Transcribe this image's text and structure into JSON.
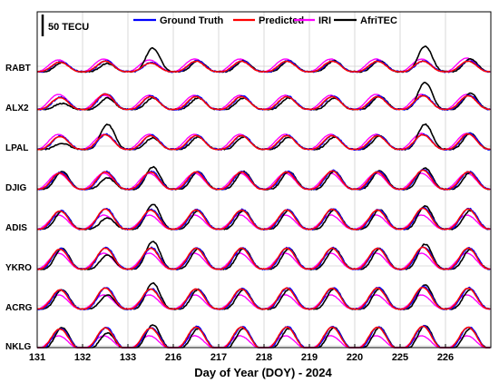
{
  "chart_data": {
    "type": "line",
    "title": "",
    "xlabel": "Day of Year (DOY) - 2024",
    "ylabel": "",
    "scale_label": "50 TECU",
    "x_ticks": [
      "131",
      "132",
      "133",
      "216",
      "217",
      "218",
      "219",
      "220",
      "225",
      "226"
    ],
    "stations": [
      "RABT",
      "ALX2",
      "LPAL",
      "DJIG",
      "ADIS",
      "YKRO",
      "ACRG",
      "NKLG"
    ],
    "legend_position": "top-center",
    "grid": true,
    "series": [
      {
        "name": "Ground Truth",
        "color": "#0000ff"
      },
      {
        "name": "Predicted",
        "color": "#ff0000"
      },
      {
        "name": "IRI",
        "color": "#ff00ff"
      },
      {
        "name": "AfriTEC",
        "color": "#000000"
      }
    ],
    "panels": [
      {
        "station": "RABT",
        "base_tecu": 0,
        "peak_tecu": [
          22,
          24,
          20,
          24,
          24,
          24,
          24,
          24,
          24,
          24
        ],
        "afritec_peak_tecu": [
          20,
          18,
          52,
          24,
          24,
          24,
          24,
          24,
          56,
          28
        ],
        "iri_peak_tecu": [
          26,
          28,
          26,
          28,
          28,
          28,
          28,
          28,
          28,
          30
        ]
      },
      {
        "station": "ALX2",
        "base_tecu": 5,
        "peak_tecu": [
          32,
          40,
          34,
          34,
          34,
          34,
          34,
          34,
          36,
          36
        ],
        "afritec_peak_tecu": [
          18,
          30,
          30,
          30,
          30,
          30,
          30,
          34,
          64,
          40
        ],
        "iri_peak_tecu": [
          38,
          36,
          36,
          36,
          36,
          36,
          36,
          38,
          38,
          38
        ]
      },
      {
        "station": "LPAL",
        "base_tecu": 5,
        "peak_tecu": [
          34,
          38,
          36,
          36,
          36,
          36,
          36,
          36,
          38,
          40
        ],
        "afritec_peak_tecu": [
          18,
          60,
          30,
          32,
          32,
          32,
          32,
          34,
          60,
          40
        ],
        "iri_peak_tecu": [
          38,
          38,
          38,
          38,
          38,
          38,
          38,
          38,
          40,
          40
        ]
      },
      {
        "station": "DJIG",
        "base_tecu": 5,
        "peak_tecu": [
          42,
          44,
          44,
          44,
          44,
          44,
          46,
          44,
          48,
          44
        ],
        "afritec_peak_tecu": [
          44,
          30,
          54,
          44,
          44,
          44,
          44,
          46,
          52,
          42
        ],
        "iri_peak_tecu": [
          40,
          40,
          40,
          40,
          40,
          40,
          40,
          40,
          40,
          40
        ]
      },
      {
        "station": "ADIS",
        "base_tecu": 5,
        "peak_tecu": [
          46,
          50,
          48,
          48,
          48,
          48,
          50,
          48,
          52,
          50
        ],
        "afritec_peak_tecu": [
          44,
          30,
          60,
          46,
          46,
          46,
          48,
          48,
          56,
          46
        ],
        "iri_peak_tecu": [
          36,
          36,
          36,
          36,
          36,
          36,
          36,
          36,
          36,
          36
        ]
      },
      {
        "station": "YKRO",
        "base_tecu": 5,
        "peak_tecu": [
          50,
          52,
          52,
          52,
          52,
          52,
          52,
          52,
          54,
          52
        ],
        "afritec_peak_tecu": [
          50,
          36,
          66,
          50,
          50,
          50,
          50,
          50,
          60,
          48
        ],
        "iri_peak_tecu": [
          40,
          40,
          40,
          40,
          40,
          40,
          40,
          40,
          40,
          40
        ]
      },
      {
        "station": "ACRG",
        "base_tecu": 5,
        "peak_tecu": [
          48,
          52,
          50,
          50,
          50,
          52,
          52,
          52,
          54,
          52
        ],
        "afritec_peak_tecu": [
          48,
          36,
          62,
          48,
          48,
          48,
          50,
          50,
          58,
          48
        ],
        "iri_peak_tecu": [
          36,
          36,
          36,
          36,
          36,
          36,
          36,
          36,
          36,
          36
        ]
      },
      {
        "station": "NKLG",
        "base_tecu": 5,
        "peak_tecu": [
          50,
          52,
          52,
          54,
          54,
          54,
          54,
          54,
          56,
          54
        ],
        "afritec_peak_tecu": [
          52,
          40,
          58,
          50,
          50,
          50,
          52,
          52,
          56,
          50
        ],
        "iri_peak_tecu": [
          34,
          34,
          34,
          34,
          34,
          34,
          34,
          34,
          34,
          34
        ]
      }
    ]
  }
}
